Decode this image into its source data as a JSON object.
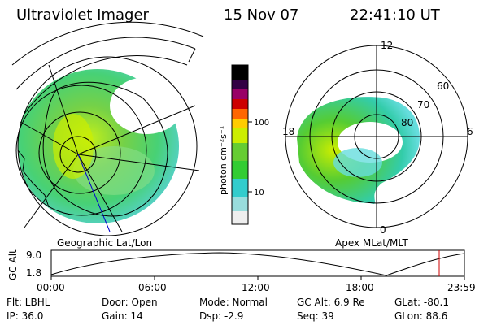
{
  "header": {
    "title": "Ultraviolet Imager",
    "date": "15 Nov 07",
    "time": "22:41:10 UT"
  },
  "left_map": {
    "caption": "Geographic Lat/Lon"
  },
  "right_map": {
    "caption": "Apex  MLat/MLT",
    "mlt_labels": {
      "top": "12",
      "left": "18",
      "right": "6",
      "bottom": "0"
    },
    "lat_labels": [
      "60",
      "70",
      "80"
    ]
  },
  "colorbar": {
    "unit_label": "photon cm⁻²s⁻¹",
    "ticks": [
      "100",
      "10"
    ],
    "colors": [
      "#eeeeee",
      "#33cccc",
      "#33cc33",
      "#ccee00",
      "#ffcc00",
      "#ff6600",
      "#cc0000",
      "#990066",
      "#330044",
      "#000000"
    ]
  },
  "altitude_plot": {
    "ylabel": "GC Alt",
    "ymax_label": "9.0",
    "ymin_label": "1.8",
    "time_ticks": [
      "00:00",
      "06:00",
      "12:00",
      "18:00",
      "23:59"
    ],
    "current_time_marker_color": "#cc0000"
  },
  "info": {
    "row1": {
      "filter": "Flt: LBHL",
      "door": "Door: Open",
      "mode": "Mode: Normal",
      "gc_alt": "GC Alt: 6.9 Re",
      "glat": "GLat: -80.1"
    },
    "row2": {
      "ip": "IP: 36.0",
      "gain": "Gain: 14",
      "dsp": "Dsp:    -2.9",
      "seq": "Seq: 39",
      "glon": "GLon:  88.6"
    }
  }
}
